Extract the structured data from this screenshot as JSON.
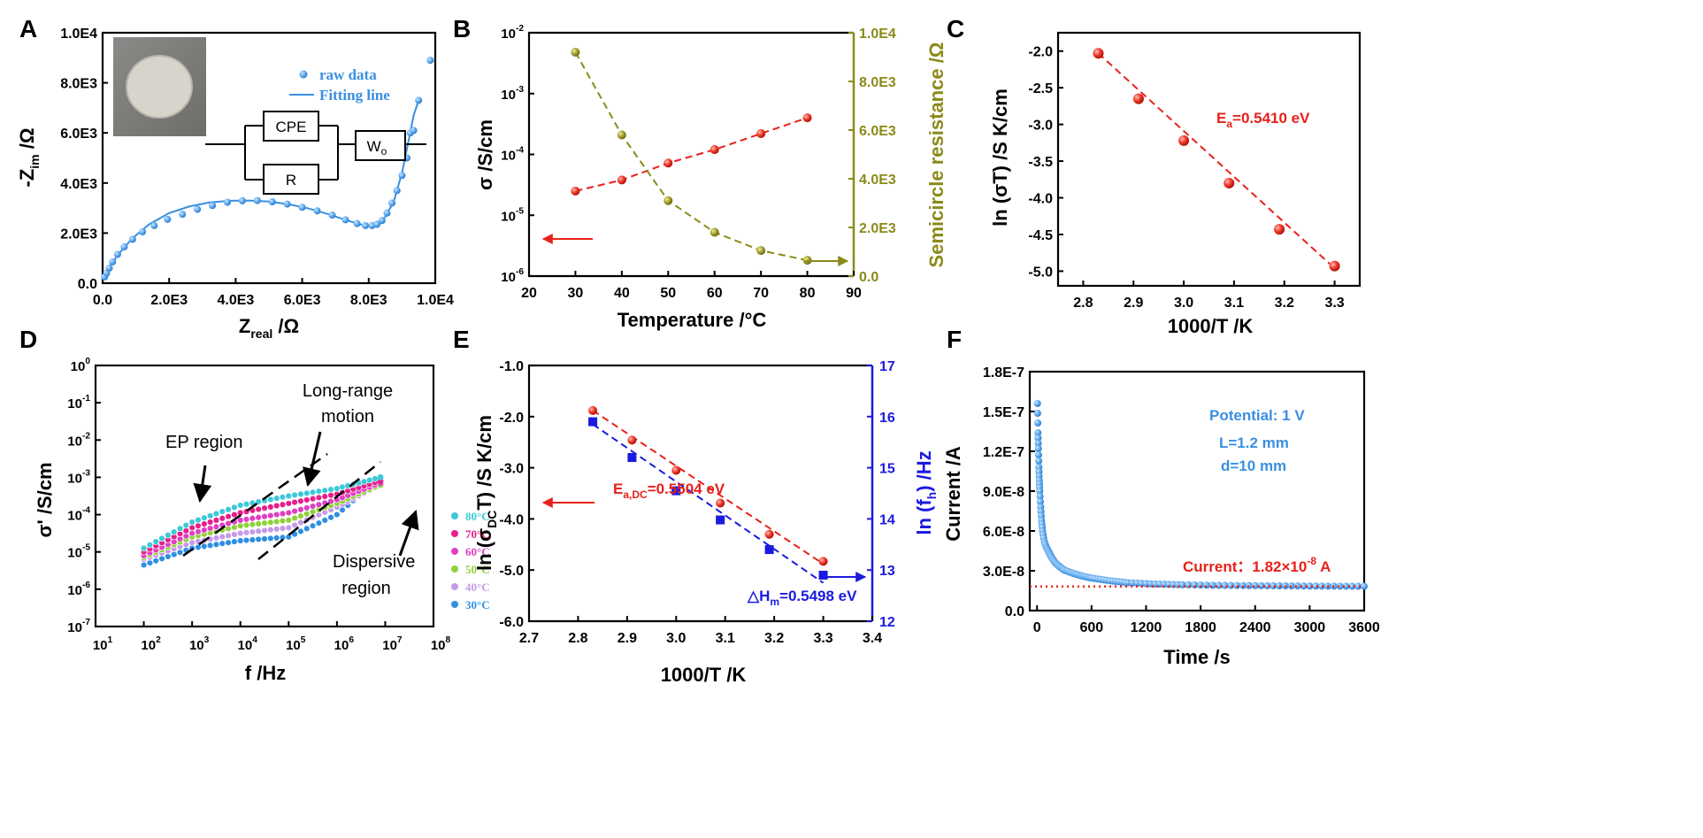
{
  "panels": {
    "A": {
      "letter": "A",
      "xlabel_main": "Z",
      "xlabel_sub": "real",
      "xlabel_unit": " /Ω",
      "ylabel_main": "-Z",
      "ylabel_sub": "im",
      "ylabel_unit": " /Ω",
      "xticks": [
        "0.0",
        "2.0E3",
        "4.0E3",
        "6.0E3",
        "8.0E3",
        "1.0E4"
      ],
      "yticks": [
        "0.0",
        "2.0E3",
        "4.0E3",
        "6.0E3",
        "8.0E3",
        "1.0E4"
      ],
      "legend_raw": "raw data",
      "legend_fit": "Fitting line",
      "circuit": {
        "cpe": "CPE",
        "r": "R",
        "wo": "W",
        "wo_sub": "o"
      }
    },
    "B": {
      "letter": "B",
      "xlabel": "Temperature /°C",
      "ylabel_left": "σ /S/cm",
      "ylabel_right": "Semicircle resistance /Ω",
      "xticks": [
        "20",
        "30",
        "40",
        "50",
        "60",
        "70",
        "80",
        "90"
      ],
      "yticks_left": [
        {
          "b": "10",
          "e": "-6"
        },
        {
          "b": "10",
          "e": "-5"
        },
        {
          "b": "10",
          "e": "-4"
        },
        {
          "b": "10",
          "e": "-3"
        },
        {
          "b": "10",
          "e": "-2"
        }
      ],
      "yticks_right": [
        "0.0",
        "2.0E3",
        "4.0E3",
        "6.0E3",
        "8.0E3",
        "1.0E4"
      ]
    },
    "C": {
      "letter": "C",
      "xlabel": "1000/T /K",
      "ylabel": "ln (σT) /S K/cm",
      "xticks": [
        "2.8",
        "2.9",
        "3.0",
        "3.1",
        "3.2",
        "3.3"
      ],
      "yticks": [
        "-5.0",
        "-4.5",
        "-4.0",
        "-3.5",
        "-3.0",
        "-2.5",
        "-2.0"
      ],
      "ann_main": "E",
      "ann_sub": "a",
      "ann_val": "=0.5410 eV"
    },
    "D": {
      "letter": "D",
      "xlabel": "f /Hz",
      "ylabel": "σ' /S/cm",
      "xticks": [
        {
          "b": "10",
          "e": "1"
        },
        {
          "b": "10",
          "e": "2"
        },
        {
          "b": "10",
          "e": "3"
        },
        {
          "b": "10",
          "e": "4"
        },
        {
          "b": "10",
          "e": "5"
        },
        {
          "b": "10",
          "e": "6"
        },
        {
          "b": "10",
          "e": "7"
        },
        {
          "b": "10",
          "e": "8"
        }
      ],
      "yticks": [
        {
          "b": "10",
          "e": "-7"
        },
        {
          "b": "10",
          "e": "-6"
        },
        {
          "b": "10",
          "e": "-5"
        },
        {
          "b": "10",
          "e": "-4"
        },
        {
          "b": "10",
          "e": "-3"
        },
        {
          "b": "10",
          "e": "-2"
        },
        {
          "b": "10",
          "e": "-1"
        },
        {
          "b": "10",
          "e": "0"
        }
      ],
      "ann_ep": "EP region",
      "ann_long1": "Long-range",
      "ann_long2": "motion",
      "ann_disp1": "Dispersive",
      "ann_disp2": "region",
      "legend": [
        "80°C",
        "70°C",
        "60°C",
        "50°C",
        "40°C",
        "30°C"
      ],
      "colors": [
        "#3dc9d8",
        "#e5208a",
        "#e03fc4",
        "#8fd13a",
        "#c79be8",
        "#2f8fe0"
      ]
    },
    "E": {
      "letter": "E",
      "xlabel": "1000/T /K",
      "ylabel_left_a": "ln (σ",
      "ylabel_left_sub": "DC",
      "ylabel_left_b": "T) /S K/cm",
      "ylabel_right_a": "ln (f",
      "ylabel_right_sub": "h",
      "ylabel_right_b": ") /Hz",
      "xticks": [
        "2.7",
        "2.8",
        "2.9",
        "3.0",
        "3.1",
        "3.2",
        "3.3",
        "3.4"
      ],
      "yticks_left": [
        "-6.0",
        "-5.0",
        "-4.0",
        "-3.0",
        "-2.0",
        "-1.0"
      ],
      "yticks_right": [
        "12",
        "13",
        "14",
        "15",
        "16",
        "17"
      ],
      "ann_ea_main": "E",
      "ann_ea_sub": "a,DC",
      "ann_ea_val": "=0.5504 eV",
      "ann_h_main": "△H",
      "ann_h_sub": "m",
      "ann_h_val": "=0.5498 eV"
    },
    "F": {
      "letter": "F",
      "xlabel": "Time /s",
      "ylabel": "Current /A",
      "xticks": [
        "0",
        "600",
        "1200",
        "1800",
        "2400",
        "3000",
        "3600"
      ],
      "yticks": [
        "0.0",
        "3.0E-8",
        "6.0E-8",
        "9.0E-8",
        "1.2E-7",
        "1.5E-7",
        "1.8E-7"
      ],
      "ann_potential": "Potential: 1 V",
      "ann_L": "L=1.2 mm",
      "ann_d": "d=10 mm",
      "ann_current_a": "Current：1.82×10",
      "ann_current_exp": "-8",
      "ann_current_b": " A"
    }
  },
  "colors": {
    "blue": "#3a8fe0",
    "red": "#e8201a",
    "olive": "#8b8a1a",
    "navy": "#1a1ae0",
    "black": "#000000"
  },
  "chart_data": [
    {
      "panel": "A",
      "type": "scatter",
      "title": "",
      "xlabel": "Zreal /Ω",
      "ylabel": "-Zim /Ω",
      "xlim": [
        0,
        10000
      ],
      "ylim": [
        0,
        10000
      ],
      "series": [
        {
          "name": "raw data",
          "marker": "circle",
          "x": [
            60,
            120,
            200,
            300,
            450,
            650,
            900,
            1200,
            1550,
            1950,
            2400,
            2850,
            3300,
            3750,
            4200,
            4650,
            5100,
            5550,
            6000,
            6450,
            6900,
            7300,
            7650,
            7900,
            8100,
            8250,
            8400,
            8550,
            8700,
            8850,
            9000,
            9150,
            9250,
            9350,
            9500,
            9850
          ],
          "y": [
            250,
            400,
            600,
            850,
            1150,
            1450,
            1750,
            2050,
            2300,
            2550,
            2750,
            2950,
            3100,
            3230,
            3290,
            3300,
            3250,
            3160,
            3030,
            2890,
            2720,
            2530,
            2380,
            2300,
            2300,
            2350,
            2500,
            2800,
            3200,
            3700,
            4300,
            5000,
            6000,
            6100,
            7300,
            8900
          ]
        },
        {
          "name": "Fitting line",
          "type": "line",
          "x": [
            0,
            200,
            500,
            900,
            1400,
            2000,
            2600,
            3200,
            3800,
            4400,
            5000,
            5600,
            6200,
            6800,
            7300,
            7700,
            8000,
            8250,
            8500,
            8750,
            9000,
            9200,
            9350,
            9500
          ],
          "y": [
            200,
            650,
            1200,
            1800,
            2350,
            2800,
            3060,
            3220,
            3290,
            3300,
            3260,
            3150,
            2980,
            2750,
            2530,
            2360,
            2290,
            2350,
            2650,
            3250,
            4400,
            5700,
            6700,
            7300
          ]
        }
      ]
    },
    {
      "panel": "B",
      "type": "scatter",
      "xlabel": "Temperature /°C",
      "ylabel": "σ /S/cm",
      "ylabel_right": "Semicircle resistance /Ω",
      "xlim": [
        20,
        90
      ],
      "ylim_log": [
        -6,
        -2
      ],
      "ylim_right": [
        0,
        10000
      ],
      "categories": [
        30,
        40,
        50,
        60,
        70,
        80
      ],
      "series": [
        {
          "name": "σ",
          "axis": "left",
          "values": [
            2.5e-05,
            3.8e-05,
            7.2e-05,
            0.00012,
            0.00022,
            0.0004
          ]
        },
        {
          "name": "Semicircle resistance",
          "axis": "right",
          "values": [
            9200,
            5800,
            3100,
            1800,
            1050,
            650
          ]
        }
      ]
    },
    {
      "panel": "C",
      "type": "scatter",
      "xlabel": "1000/T /K",
      "ylabel": "ln (σT) /S K/cm",
      "xlim": [
        2.75,
        3.35
      ],
      "ylim": [
        -5.2,
        -1.75
      ],
      "series": [
        {
          "name": "ln(σT)",
          "x": [
            2.83,
            2.91,
            3.0,
            3.09,
            3.19,
            3.3
          ],
          "y": [
            -2.03,
            -2.65,
            -3.22,
            -3.8,
            -4.43,
            -4.93
          ]
        }
      ]
    },
    {
      "panel": "D",
      "type": "scatter",
      "xlabel": "f /Hz",
      "ylabel": "σ' /S/cm",
      "xlim_log": [
        1,
        8
      ],
      "ylim_log": [
        -7,
        0
      ],
      "series": [
        {
          "name": "80°C",
          "logf": [
            2,
            3,
            4,
            5,
            6,
            6.9
          ],
          "logs": [
            -4.9,
            -4.2,
            -3.75,
            -3.5,
            -3.3,
            -3.0
          ]
        },
        {
          "name": "70°C",
          "logf": [
            2,
            3,
            4,
            5,
            6,
            6.9
          ],
          "logs": [
            -5.0,
            -4.35,
            -3.95,
            -3.7,
            -3.45,
            -3.1
          ]
        },
        {
          "name": "60°C",
          "logf": [
            2,
            3,
            4,
            5,
            6,
            6.9
          ],
          "logs": [
            -5.1,
            -4.5,
            -4.15,
            -3.95,
            -3.6,
            -3.15
          ]
        },
        {
          "name": "50°C",
          "logf": [
            2,
            3,
            4,
            5,
            6,
            6.9
          ],
          "logs": [
            -5.15,
            -4.6,
            -4.3,
            -4.15,
            -3.7,
            -3.2
          ]
        },
        {
          "name": "40°C",
          "logf": [
            2,
            3,
            4,
            5,
            6,
            6.9
          ],
          "logs": [
            -5.2,
            -4.75,
            -4.5,
            -4.35,
            -3.8,
            -3.2
          ]
        },
        {
          "name": "30°C",
          "logf": [
            2,
            3,
            4,
            5,
            6,
            6.9
          ],
          "logs": [
            -5.35,
            -4.9,
            -4.7,
            -4.6,
            -4.0,
            -3.0
          ]
        }
      ]
    },
    {
      "panel": "E",
      "type": "scatter",
      "xlabel": "1000/T /K",
      "ylabel": "ln (σDC T) /S K/cm",
      "ylabel_right": "ln (fh) /Hz",
      "xlim": [
        2.7,
        3.4
      ],
      "ylim": [
        -6,
        -1
      ],
      "ylim_right": [
        12,
        17
      ],
      "series": [
        {
          "name": "ln(σDC T)",
          "axis": "left",
          "marker": "circle",
          "x": [
            2.83,
            2.91,
            3.0,
            3.09,
            3.19,
            3.3
          ],
          "y": [
            -1.88,
            -2.46,
            -3.05,
            -3.69,
            -4.3,
            -4.83
          ]
        },
        {
          "name": "ln(fh)",
          "axis": "right",
          "marker": "square",
          "x": [
            2.83,
            2.91,
            3.0,
            3.09,
            3.19,
            3.3
          ],
          "y": [
            15.9,
            15.2,
            14.55,
            13.98,
            13.4,
            12.9
          ]
        }
      ]
    },
    {
      "panel": "F",
      "type": "scatter",
      "xlabel": "Time /s",
      "ylabel": "Current /A",
      "xlim": [
        -80,
        3600
      ],
      "ylim": [
        0,
        1.8e-07
      ],
      "series": [
        {
          "name": "Current",
          "x": [
            5,
            10,
            15,
            20,
            25,
            30,
            40,
            50,
            60,
            80,
            100,
            130,
            160,
            200,
            250,
            300,
            400,
            500,
            600,
            800,
            1000,
            1300,
            1600,
            2000,
            2400,
            2800,
            3200,
            3600
          ],
          "y": [
            1.56e-07,
            1.34e-07,
            1.22e-07,
            1.08e-07,
            9.8e-08,
            9e-08,
            7.8e-08,
            6.8e-08,
            6e-08,
            5.2e-08,
            4.8e-08,
            4.4e-08,
            4e-08,
            3.6e-08,
            3.3e-08,
            3.05e-08,
            2.8e-08,
            2.6e-08,
            2.45e-08,
            2.25e-08,
            2.1e-08,
            2e-08,
            1.95e-08,
            1.9e-08,
            1.88e-08,
            1.86e-08,
            1.84e-08,
            1.83e-08
          ]
        },
        {
          "name": "Current: 1.82×10^-8 A",
          "type": "hline",
          "y": 1.82e-08
        }
      ]
    }
  ]
}
